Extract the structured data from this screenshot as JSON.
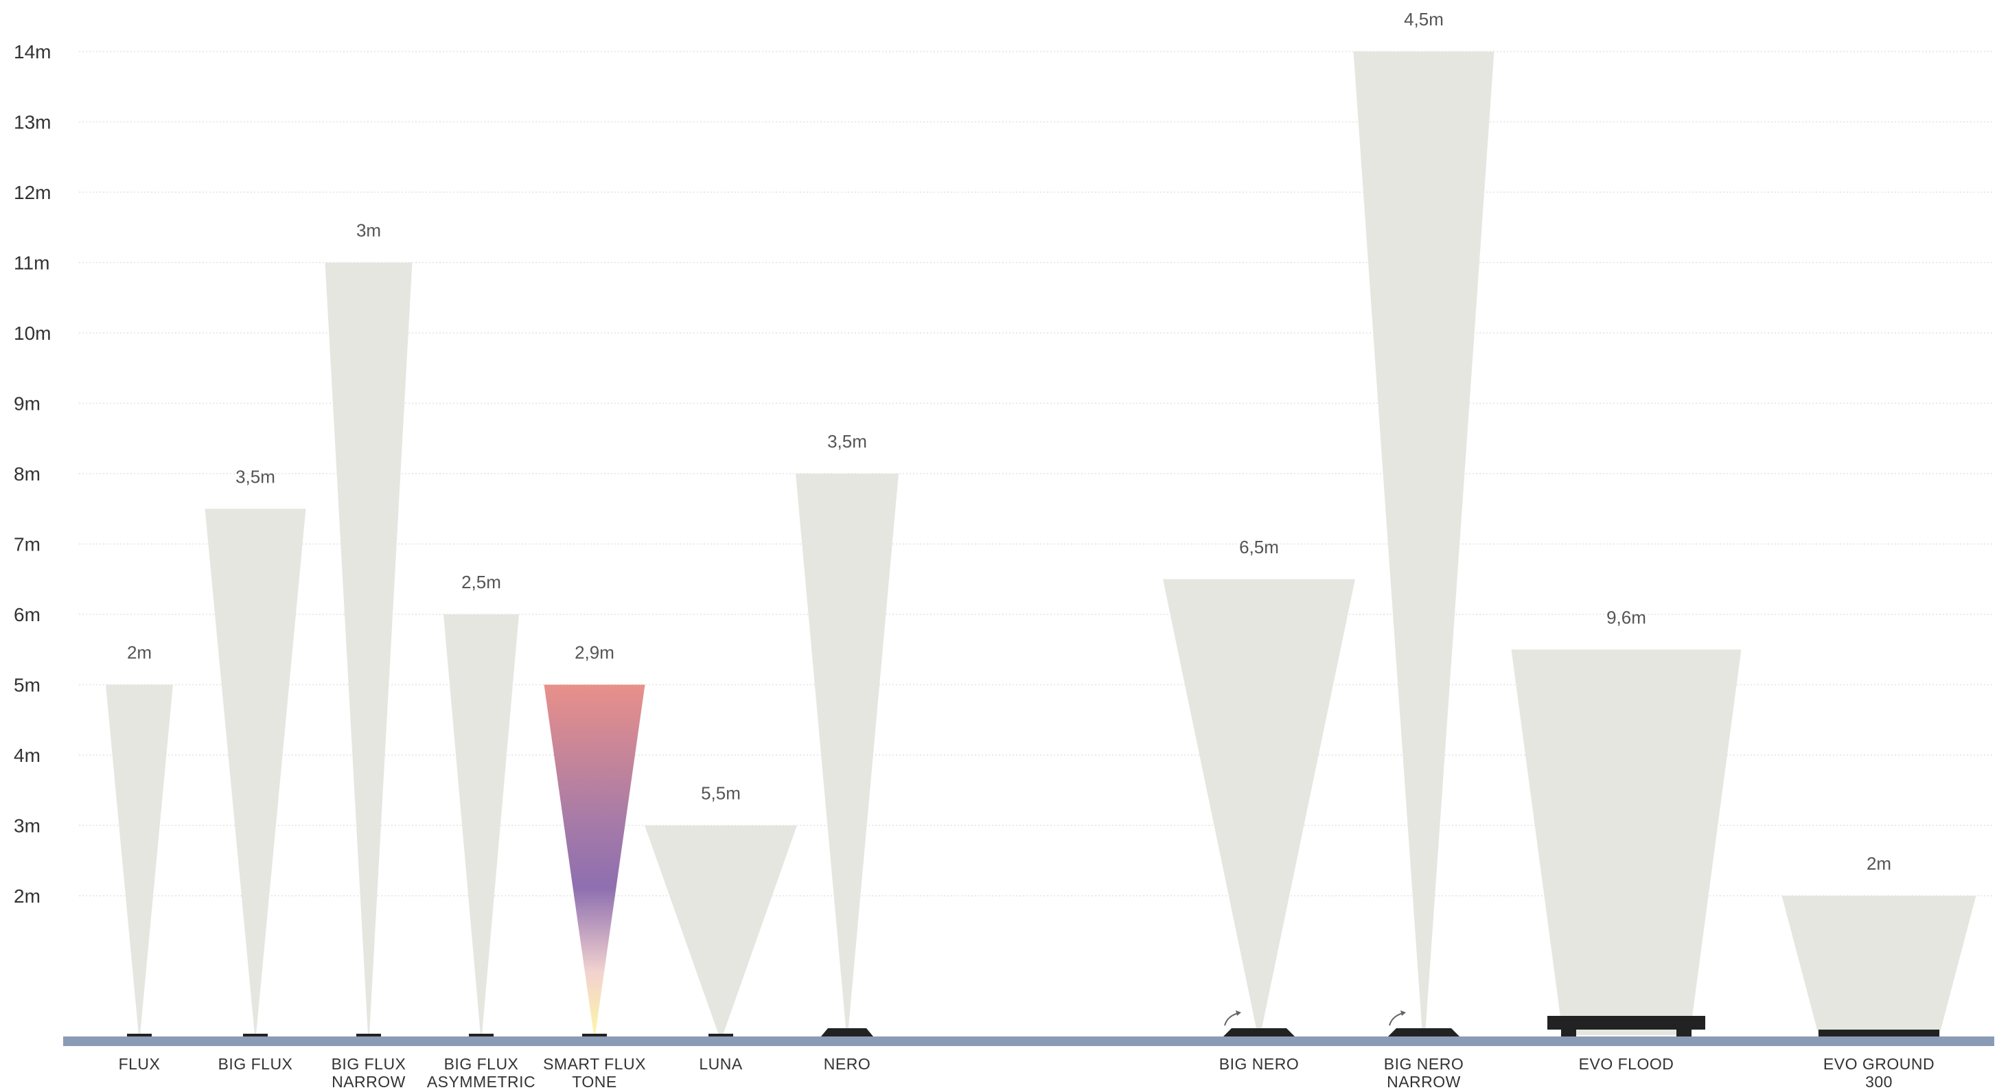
{
  "chart_data": {
    "type": "beam-height-comparison",
    "ylim": [
      0,
      14
    ],
    "y_ticks": [
      {
        "value": 14,
        "label": "14m"
      },
      {
        "value": 13,
        "label": "13m"
      },
      {
        "value": 12,
        "label": "12m"
      },
      {
        "value": 11,
        "label": "11m"
      },
      {
        "value": 10,
        "label": "10m"
      },
      {
        "value": 9,
        "label": "9m"
      },
      {
        "value": 8,
        "label": "8m"
      },
      {
        "value": 7,
        "label": "7m"
      },
      {
        "value": 6,
        "label": "6m"
      },
      {
        "value": 5,
        "label": "5m"
      },
      {
        "value": 4,
        "label": "4m"
      },
      {
        "value": 3,
        "label": "3m"
      },
      {
        "value": 2,
        "label": "2m"
      }
    ],
    "grid": true,
    "colors": {
      "beam": "#e6e6e1",
      "ground": "#8a9bb5",
      "fixture": "#222222",
      "grid": "#e2e2e2",
      "gradient": [
        "#e8908a",
        "#8e6fb0",
        "#fdf6a8"
      ]
    },
    "fixtures": [
      {
        "name": [
          "FLUX"
        ],
        "height_m": 5,
        "beam_width_label": "2m",
        "beam_style": "solid",
        "fixture_icon": "small-slot"
      },
      {
        "name": [
          "BIG FLUX"
        ],
        "height_m": 7.5,
        "beam_width_label": "3,5m",
        "beam_style": "solid",
        "fixture_icon": "small-slot"
      },
      {
        "name": [
          "BIG FLUX",
          "NARROW"
        ],
        "height_m": 11,
        "beam_width_label": "3m",
        "beam_style": "solid",
        "fixture_icon": "small-slot"
      },
      {
        "name": [
          "BIG FLUX",
          "ASYMMETRIC"
        ],
        "height_m": 6,
        "beam_width_label": "2,5m",
        "beam_style": "solid",
        "fixture_icon": "small-slot"
      },
      {
        "name": [
          "SMART FLUX",
          "TONE"
        ],
        "height_m": 5,
        "beam_width_label": "2,9m",
        "beam_style": "gradient",
        "fixture_icon": "small-slot"
      },
      {
        "name": [
          "LUNA"
        ],
        "height_m": 3,
        "beam_width_label": "5,5m",
        "beam_style": "solid",
        "fixture_icon": "small-slot"
      },
      {
        "name": [
          "NERO"
        ],
        "height_m": 8,
        "beam_width_label": "3,5m",
        "beam_style": "solid",
        "fixture_icon": "trapezoid"
      },
      {
        "name": [
          "BIG NERO"
        ],
        "height_m": 6.5,
        "beam_width_label": "6,5m",
        "beam_style": "solid",
        "fixture_icon": "trapezoid-tilt"
      },
      {
        "name": [
          "BIG NERO",
          "NARROW"
        ],
        "height_m": 14,
        "beam_width_label": "4,5m",
        "beam_style": "solid",
        "fixture_icon": "trapezoid-tilt"
      },
      {
        "name": [
          "EVO FLOOD"
        ],
        "height_m": 5.5,
        "beam_width_label": "9,6m",
        "beam_style": "solid",
        "fixture_icon": "flood"
      },
      {
        "name": [
          "EVO GROUND",
          "300"
        ],
        "height_m": 2,
        "beam_width_label": "2m",
        "beam_style": "solid",
        "fixture_icon": "ground-bar"
      }
    ]
  }
}
